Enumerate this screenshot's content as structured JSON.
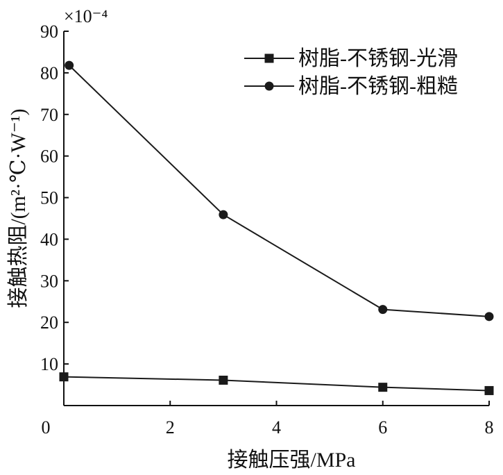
{
  "chart_data": {
    "type": "line",
    "title": "",
    "xlabel": "接触压强/MPa",
    "ylabel": "接触热阻/(m²·℃·W⁻¹)",
    "y_scale_label": "×10⁻⁴",
    "xlim": [
      0,
      8
    ],
    "ylim": [
      0,
      90
    ],
    "x_ticks": [
      0,
      2,
      4,
      6,
      8
    ],
    "y_ticks": [
      10,
      20,
      30,
      40,
      50,
      60,
      70,
      80,
      90
    ],
    "grid": false,
    "legend_position": "top-right",
    "series": [
      {
        "name": "树脂-不锈钢-光滑",
        "marker": "square",
        "color": "#1a1a1a",
        "x": [
          0.0,
          3.0,
          6.0,
          8.0
        ],
        "y": [
          6.9,
          6.1,
          4.4,
          3.6
        ]
      },
      {
        "name": "树脂-不锈钢-粗糙",
        "marker": "circle",
        "color": "#1a1a1a",
        "x": [
          0.1,
          3.0,
          6.0,
          8.0
        ],
        "y": [
          81.8,
          45.9,
          23.1,
          21.4
        ]
      }
    ]
  }
}
